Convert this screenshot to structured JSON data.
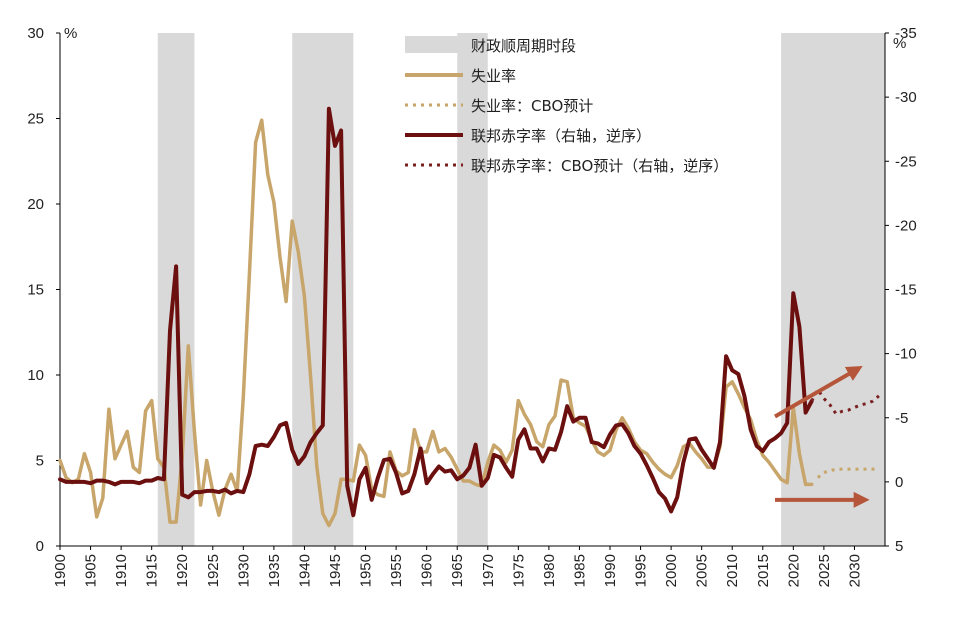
{
  "chart_data": {
    "type": "line",
    "left_axis_unit": "%",
    "right_axis_unit": "%",
    "x_range": [
      1900,
      2035
    ],
    "x_ticks": [
      "1900",
      "1905",
      "1910",
      "1915",
      "1920",
      "1925",
      "1930",
      "1935",
      "1940",
      "1945",
      "1950",
      "1955",
      "1960",
      "1965",
      "1970",
      "1975",
      "1980",
      "1985",
      "1990",
      "1995",
      "2000",
      "2005",
      "2010",
      "2015",
      "2020",
      "2025",
      "2030"
    ],
    "left_axis": {
      "min": 0,
      "max": 30,
      "ticks": [
        "0",
        "5",
        "10",
        "15",
        "20",
        "25",
        "30"
      ]
    },
    "right_axis": {
      "inverted": true,
      "top": -35,
      "bottom": 5,
      "ticks": [
        "-35",
        "-30",
        "-25",
        "-20",
        "-15",
        "-10",
        "-5",
        "0",
        "5"
      ]
    },
    "shaded_periods": [
      [
        1916,
        1922
      ],
      [
        1938,
        1948
      ],
      [
        1965,
        1970
      ],
      [
        2018,
        2035
      ]
    ],
    "legend": [
      {
        "label": "财政顺周期时段",
        "kind": "shade",
        "color": "#d9d9d9"
      },
      {
        "label": "失业率",
        "kind": "solid",
        "color": "#c8a56a"
      },
      {
        "label": "失业率：CBO预计",
        "kind": "dotted",
        "color": "#c8a56a"
      },
      {
        "label": "联邦赤字率（右轴，逆序）",
        "kind": "solid",
        "color": "#6b0f0f"
      },
      {
        "label": "联邦赤字率：CBO预计（右轴，逆序）",
        "kind": "dotted",
        "color": "#7a2020"
      }
    ],
    "series": [
      {
        "name": "失业率",
        "axis": "left",
        "color": "#c8a56a",
        "style": "solid",
        "x": [
          1900,
          1901,
          1902,
          1903,
          1904,
          1905,
          1906,
          1907,
          1908,
          1909,
          1910,
          1911,
          1912,
          1913,
          1914,
          1915,
          1916,
          1917,
          1918,
          1919,
          1920,
          1921,
          1922,
          1923,
          1924,
          1925,
          1926,
          1927,
          1928,
          1929,
          1930,
          1931,
          1932,
          1933,
          1934,
          1935,
          1936,
          1937,
          1938,
          1939,
          1940,
          1941,
          1942,
          1943,
          1944,
          1945,
          1946,
          1947,
          1948,
          1949,
          1950,
          1951,
          1952,
          1953,
          1954,
          1955,
          1956,
          1957,
          1958,
          1959,
          1960,
          1961,
          1962,
          1963,
          1964,
          1965,
          1966,
          1967,
          1968,
          1969,
          1970,
          1971,
          1972,
          1973,
          1974,
          1975,
          1976,
          1977,
          1978,
          1979,
          1980,
          1981,
          1982,
          1983,
          1984,
          1985,
          1986,
          1987,
          1988,
          1989,
          1990,
          1991,
          1992,
          1993,
          1994,
          1995,
          1996,
          1997,
          1998,
          1999,
          2000,
          2001,
          2002,
          2003,
          2004,
          2005,
          2006,
          2007,
          2008,
          2009,
          2010,
          2011,
          2012,
          2013,
          2014,
          2015,
          2016,
          2017,
          2018,
          2019,
          2020,
          2021,
          2022,
          2023
        ],
        "values": [
          5.0,
          4.0,
          3.7,
          3.9,
          5.4,
          4.3,
          1.7,
          2.8,
          8.0,
          5.1,
          5.9,
          6.7,
          4.6,
          4.3,
          7.9,
          8.5,
          5.1,
          4.6,
          1.4,
          1.4,
          5.2,
          11.7,
          6.7,
          2.4,
          5.0,
          3.2,
          1.8,
          3.3,
          4.2,
          3.2,
          8.7,
          15.9,
          23.6,
          24.9,
          21.7,
          20.1,
          16.9,
          14.3,
          19.0,
          17.2,
          14.6,
          9.9,
          4.7,
          1.9,
          1.2,
          1.9,
          3.9,
          3.9,
          3.8,
          5.9,
          5.3,
          3.3,
          3.0,
          2.9,
          5.5,
          4.4,
          4.1,
          4.3,
          6.8,
          5.5,
          5.5,
          6.7,
          5.5,
          5.7,
          5.2,
          4.5,
          3.8,
          3.8,
          3.6,
          3.5,
          4.9,
          5.9,
          5.6,
          4.9,
          5.6,
          8.5,
          7.7,
          7.1,
          6.1,
          5.8,
          7.1,
          7.6,
          9.7,
          9.6,
          7.5,
          7.2,
          7.0,
          6.2,
          5.5,
          5.3,
          5.6,
          6.8,
          7.5,
          6.9,
          6.1,
          5.6,
          5.4,
          4.9,
          4.5,
          4.2,
          4.0,
          4.7,
          5.8,
          6.0,
          5.5,
          5.1,
          4.6,
          4.6,
          5.8,
          9.3,
          9.6,
          8.9,
          8.1,
          7.4,
          6.2,
          5.3,
          4.9,
          4.4,
          3.9,
          3.7,
          8.1,
          5.4,
          3.6,
          3.6
        ]
      },
      {
        "name": "失业率：CBO预计",
        "axis": "left",
        "color": "#c8a56a",
        "style": "dotted",
        "x": [
          2024,
          2025,
          2026,
          2027,
          2028,
          2029,
          2030,
          2031,
          2032,
          2033,
          2034
        ],
        "values": [
          4.0,
          4.3,
          4.4,
          4.5,
          4.5,
          4.5,
          4.5,
          4.5,
          4.5,
          4.5,
          4.5
        ]
      },
      {
        "name": "联邦赤字率（右轴，逆序）",
        "axis": "right",
        "color": "#6b0f0f",
        "style": "solid",
        "x": [
          1900,
          1901,
          1902,
          1903,
          1904,
          1905,
          1906,
          1907,
          1908,
          1909,
          1910,
          1911,
          1912,
          1913,
          1914,
          1915,
          1916,
          1917,
          1918,
          1919,
          1920,
          1921,
          1922,
          1923,
          1924,
          1925,
          1926,
          1927,
          1928,
          1929,
          1930,
          1931,
          1932,
          1933,
          1934,
          1935,
          1936,
          1937,
          1938,
          1939,
          1940,
          1941,
          1942,
          1943,
          1944,
          1945,
          1946,
          1947,
          1948,
          1949,
          1950,
          1951,
          1952,
          1953,
          1954,
          1955,
          1956,
          1957,
          1958,
          1959,
          1960,
          1961,
          1962,
          1963,
          1964,
          1965,
          1966,
          1967,
          1968,
          1969,
          1970,
          1971,
          1972,
          1973,
          1974,
          1975,
          1976,
          1977,
          1978,
          1979,
          1980,
          1981,
          1982,
          1983,
          1984,
          1985,
          1986,
          1987,
          1988,
          1989,
          1990,
          1991,
          1992,
          1993,
          1994,
          1995,
          1996,
          1997,
          1998,
          1999,
          2000,
          2001,
          2002,
          2003,
          2004,
          2005,
          2006,
          2007,
          2008,
          2009,
          2010,
          2011,
          2012,
          2013,
          2014,
          2015,
          2016,
          2017,
          2018,
          2019,
          2020,
          2021,
          2022,
          2023
        ],
        "values": [
          -0.2,
          0.0,
          0.0,
          0.0,
          0.0,
          0.1,
          -0.1,
          -0.1,
          0.0,
          0.2,
          0.0,
          0.0,
          0.0,
          0.1,
          -0.1,
          -0.1,
          -0.3,
          -0.2,
          -11.8,
          -16.8,
          1.0,
          1.2,
          0.8,
          0.8,
          0.7,
          0.7,
          0.8,
          0.6,
          0.9,
          0.7,
          0.8,
          -0.6,
          -2.8,
          -2.9,
          -2.8,
          -3.5,
          -4.4,
          -4.6,
          -2.5,
          -1.4,
          -2.0,
          -3.1,
          -3.8,
          -4.4,
          -29.1,
          -26.2,
          -27.4,
          0.3,
          2.6,
          -0.2,
          -1.1,
          1.4,
          -0.3,
          -1.7,
          -1.8,
          -0.7,
          0.9,
          0.7,
          -0.6,
          -2.6,
          0.1,
          -0.6,
          -1.2,
          -0.8,
          -0.9,
          -0.2,
          -0.5,
          -1.1,
          -2.9,
          0.3,
          -0.3,
          -2.1,
          -1.9,
          -1.1,
          -0.4,
          -3.3,
          -4.1,
          -2.6,
          -2.6,
          -1.6,
          -2.6,
          -2.5,
          -3.9,
          -5.9,
          -4.7,
          -5.0,
          -5.0,
          -3.1,
          -3.0,
          -2.7,
          -3.7,
          -4.4,
          -4.5,
          -3.8,
          -2.8,
          -2.2,
          -1.3,
          -0.3,
          0.8,
          1.3,
          2.3,
          1.2,
          -1.5,
          -3.3,
          -3.4,
          -2.5,
          -1.8,
          -1.1,
          -3.1,
          -9.8,
          -8.7,
          -8.4,
          -6.7,
          -4.1,
          -2.8,
          -2.4,
          -3.1,
          -3.4,
          -3.8,
          -4.6,
          -14.7,
          -12.1,
          -5.4,
          -6.3
        ]
      },
      {
        "name": "联邦赤字率：CBO预计（右轴，逆序）",
        "axis": "right",
        "color": "#7a2020",
        "style": "dotted",
        "x": [
          2023,
          2024,
          2025,
          2026,
          2027,
          2028,
          2029,
          2030,
          2031,
          2032,
          2033,
          2034
        ],
        "values": [
          -6.3,
          -7.2,
          -6.5,
          -6.0,
          -5.3,
          -5.5,
          -5.6,
          -5.8,
          -6.0,
          -6.1,
          -6.3,
          -6.7
        ]
      }
    ],
    "annotations": [
      {
        "type": "arrow",
        "color": "#b5553a",
        "from": [
          2017,
          -5.1
        ],
        "to": [
          2030.5,
          -8.8
        ],
        "axis": "right"
      },
      {
        "type": "arrow",
        "color": "#b5553a",
        "from": [
          2017,
          1.4
        ],
        "to": [
          2031.5,
          1.4
        ],
        "axis": "right"
      }
    ]
  }
}
